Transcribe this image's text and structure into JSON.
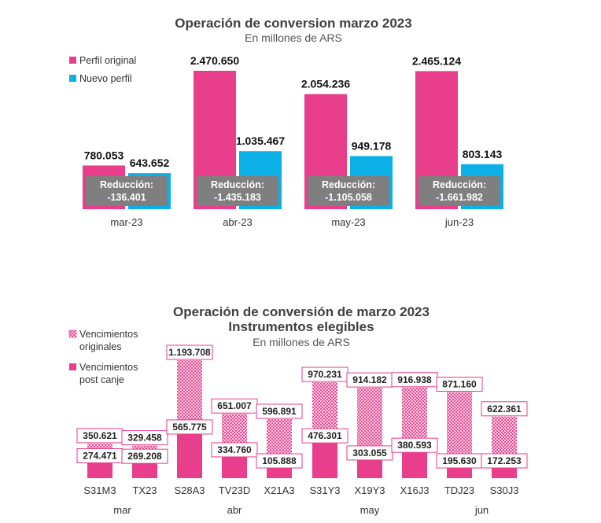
{
  "chart_data": [
    {
      "type": "bar",
      "title": "Operación de conversion marzo 2023",
      "subtitle": "En millones de ARS",
      "categories": [
        "mar-23",
        "abr-23",
        "may-23",
        "jun-23"
      ],
      "series": [
        {
          "name": "Perfil original",
          "color": "#e83e8c",
          "values": [
            780053,
            2470650,
            2054236,
            2465124
          ],
          "labels": [
            "780.053",
            "2.470.650",
            "2.054.236",
            "2.465.124"
          ]
        },
        {
          "name": "Nuevo perfil",
          "color": "#0ab0e6",
          "values": [
            643652,
            1035467,
            949178,
            803143
          ],
          "labels": [
            "643.652",
            "1.035.467",
            "949.178",
            "803.143"
          ]
        }
      ],
      "reduction_label": "Reducción:",
      "reductions": [
        "-136.401",
        "-1.435.183",
        "-1.105.058",
        "-1.661.982"
      ],
      "legend_position": "top-left",
      "grid": false
    },
    {
      "type": "bar",
      "title": "Operación de conversión de marzo 2023",
      "title2": "Instrumentos elegibles",
      "subtitle": "En millones de ARS",
      "categories": [
        "S31M3",
        "TX23",
        "S28A3",
        "TV23D",
        "X21A3",
        "S31Y3",
        "X19Y3",
        "X16J3",
        "TDJ23",
        "S30J3"
      ],
      "groups": [
        {
          "label": "mar",
          "from": 0,
          "to": 1
        },
        {
          "label": "abr",
          "from": 2,
          "to": 4
        },
        {
          "label": "may",
          "from": 5,
          "to": 7
        },
        {
          "label": "jun",
          "from": 8,
          "to": 9
        }
      ],
      "series": [
        {
          "name": "Vencimientos originales",
          "name_lines": [
            "Vencimientos",
            "originales"
          ],
          "pattern": "hatched",
          "values": [
            350621,
            329458,
            1193708,
            651007,
            596891,
            970231,
            914182,
            916938,
            871160,
            622361
          ],
          "labels": [
            "350.621",
            "329.458",
            "1.193.708",
            "651.007",
            "596.891",
            "970.231",
            "914.182",
            "916.938",
            "871.160",
            "622.361"
          ]
        },
        {
          "name": "Vencimientos post canje",
          "name_lines": [
            "Vencimientos",
            "post canje"
          ],
          "pattern": "solid",
          "values": [
            274471,
            269208,
            565775,
            334760,
            105888,
            476301,
            303055,
            380593,
            195630,
            172253
          ],
          "labels": [
            "274.471",
            "269.208",
            "565.775",
            "334.760",
            "105.888",
            "476.301",
            "303.055",
            "380.593",
            "195.630",
            "172.253"
          ]
        }
      ],
      "colors": {
        "pink": "#e83e8c",
        "hatch": "#f4c6de"
      },
      "legend_position": "top-left",
      "grid": false
    }
  ]
}
